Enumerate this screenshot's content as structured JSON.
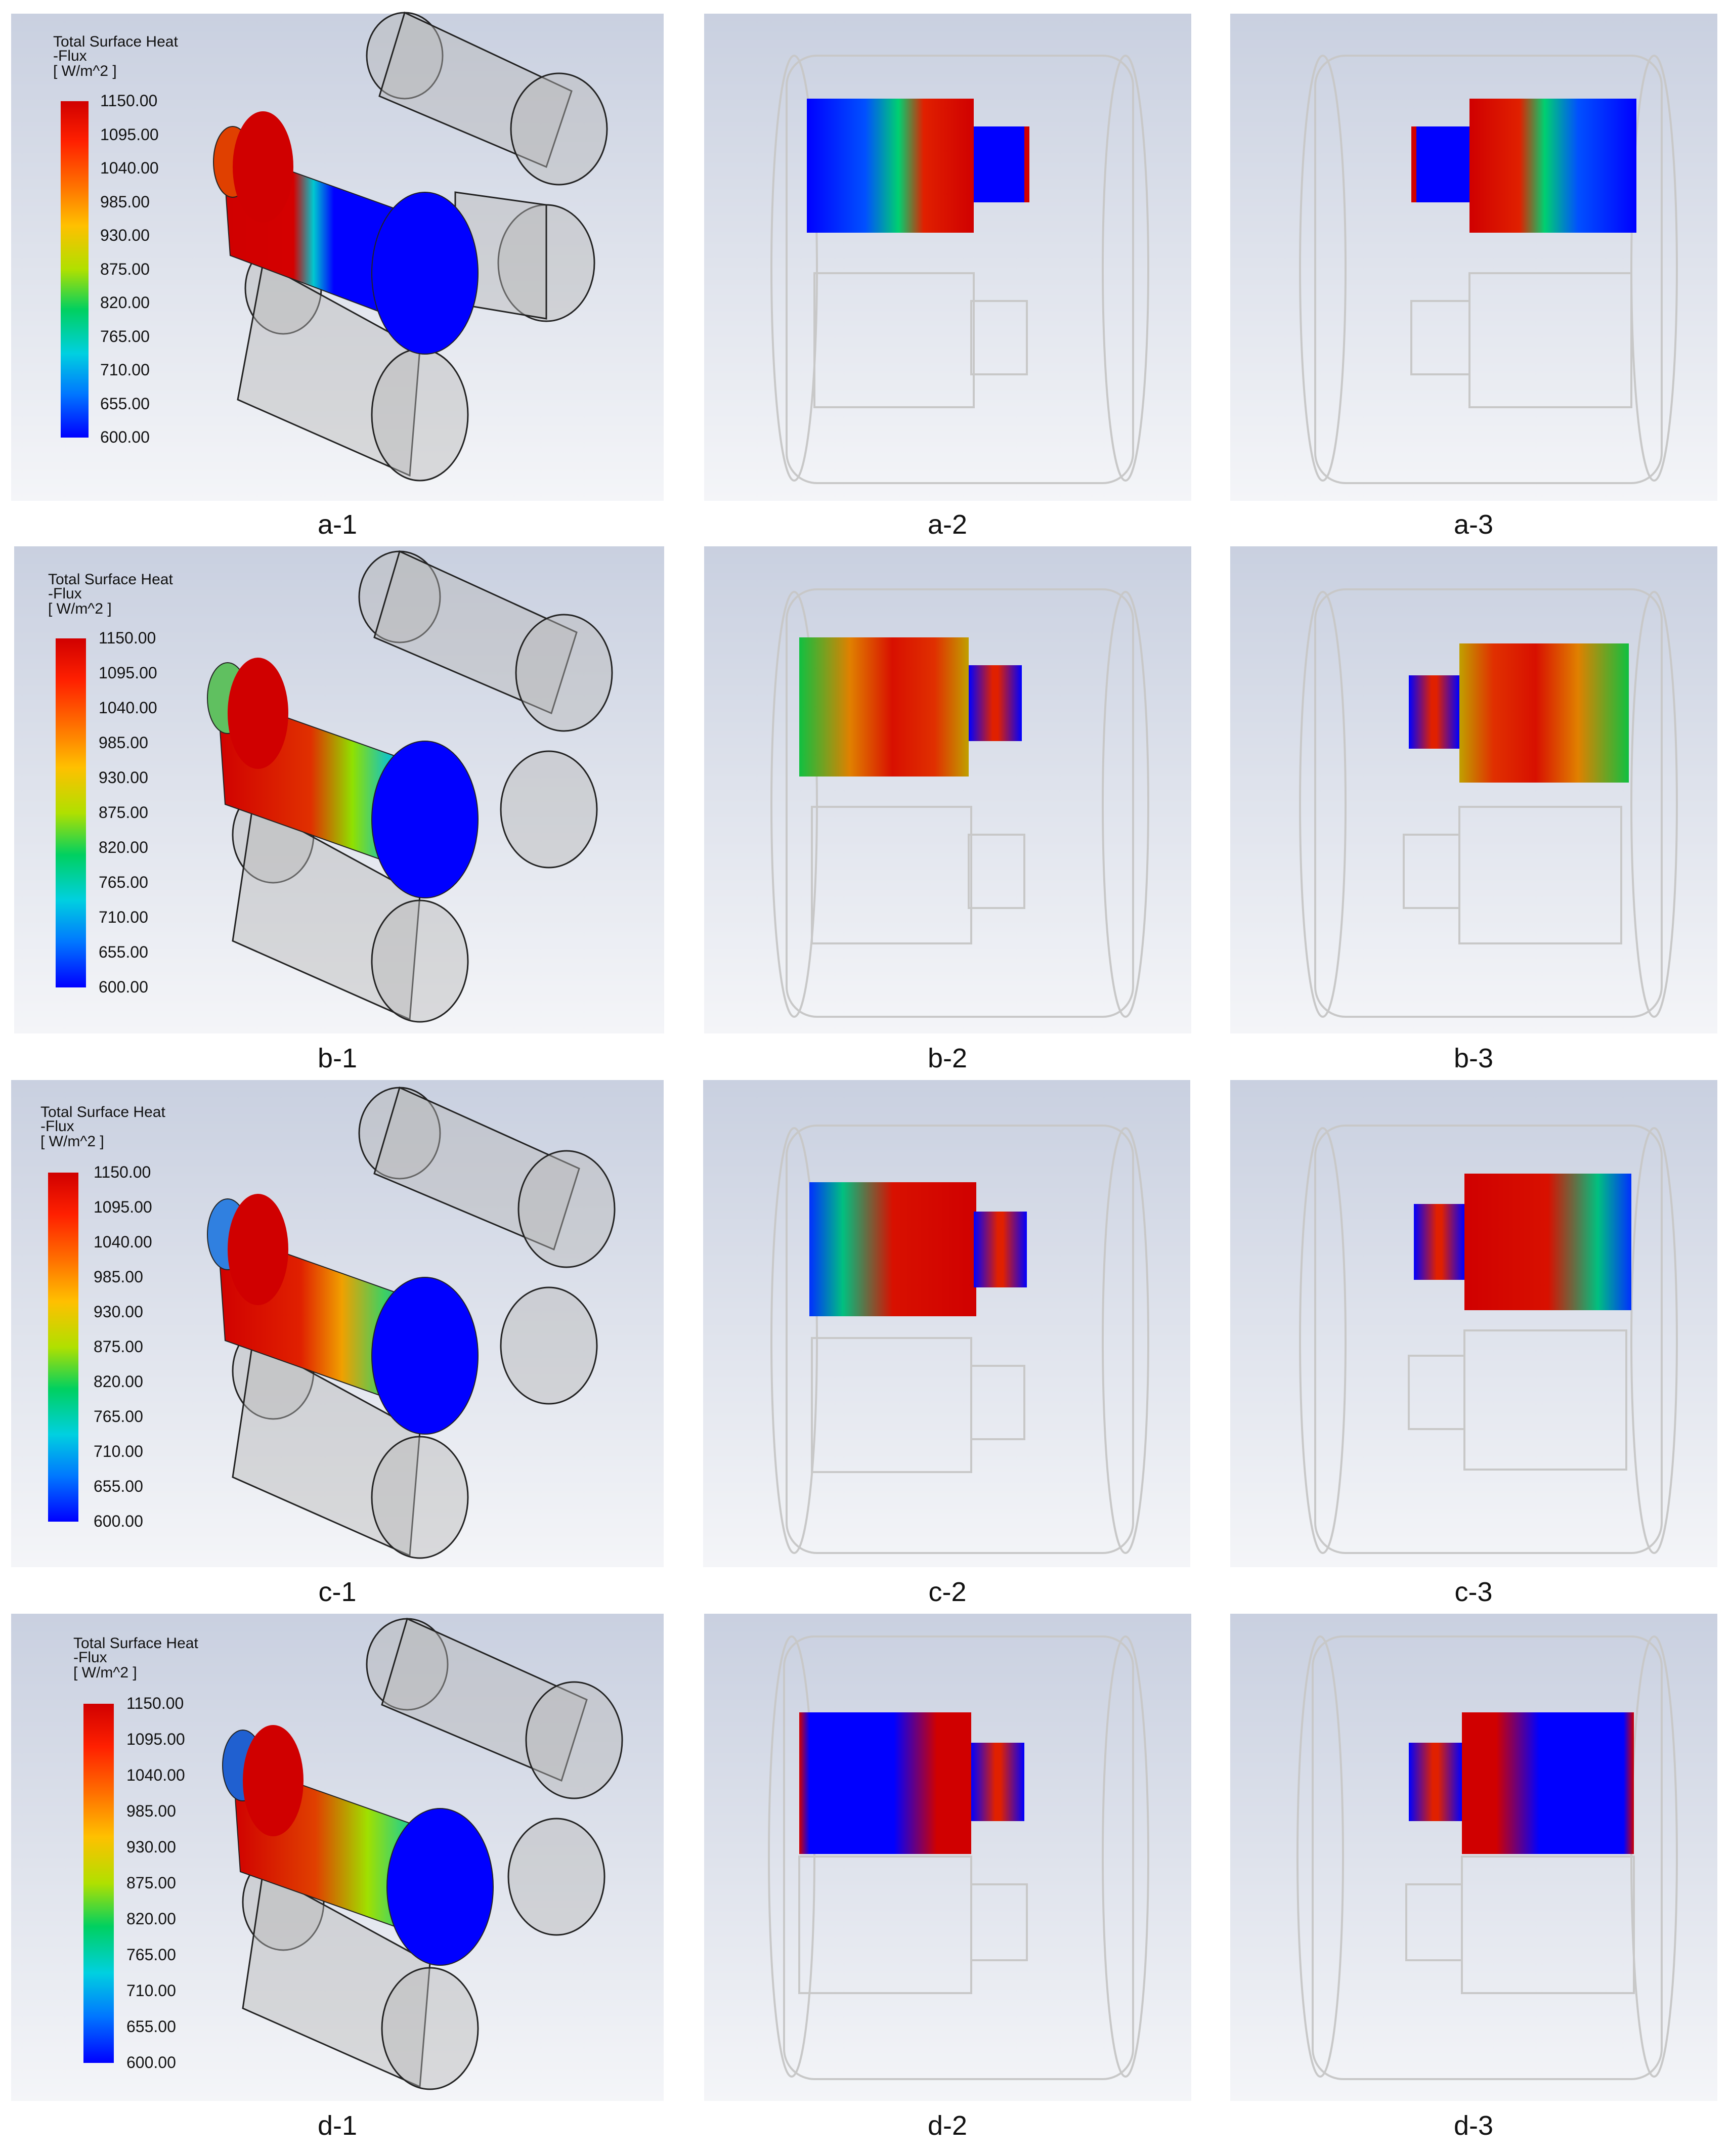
{
  "legend": {
    "title_line1": "Total Surface Heat",
    "title_line2": "-Flux",
    "unit": "[ W/m^2 ]",
    "ticks": [
      "1150.00",
      "1095.00",
      "1040.00",
      "985.00",
      "930.00",
      "875.00",
      "820.00",
      "765.00",
      "710.00",
      "655.00",
      "600.00"
    ],
    "range": [
      600,
      1150
    ],
    "colors": [
      "#0000ff",
      "#0077ff",
      "#00d0e0",
      "#00d060",
      "#b0e000",
      "#ffc000",
      "#ff7000",
      "#ff2000",
      "#d00000"
    ]
  },
  "rows": [
    {
      "letter": "a",
      "captions": [
        "a-1",
        "a-2",
        "a-3"
      ]
    },
    {
      "letter": "b",
      "captions": [
        "b-1",
        "b-2",
        "b-3"
      ]
    },
    {
      "letter": "c",
      "captions": [
        "c-1",
        "c-2",
        "c-3"
      ]
    },
    {
      "letter": "d",
      "captions": [
        "d-1",
        "d-2",
        "d-3"
      ]
    }
  ],
  "colors": {
    "background_top": "#c9d0e0",
    "background_bottom": "#f4f5f8",
    "hot": "#d40000",
    "cold": "#0000ff",
    "outline": "#c8c8c8"
  }
}
